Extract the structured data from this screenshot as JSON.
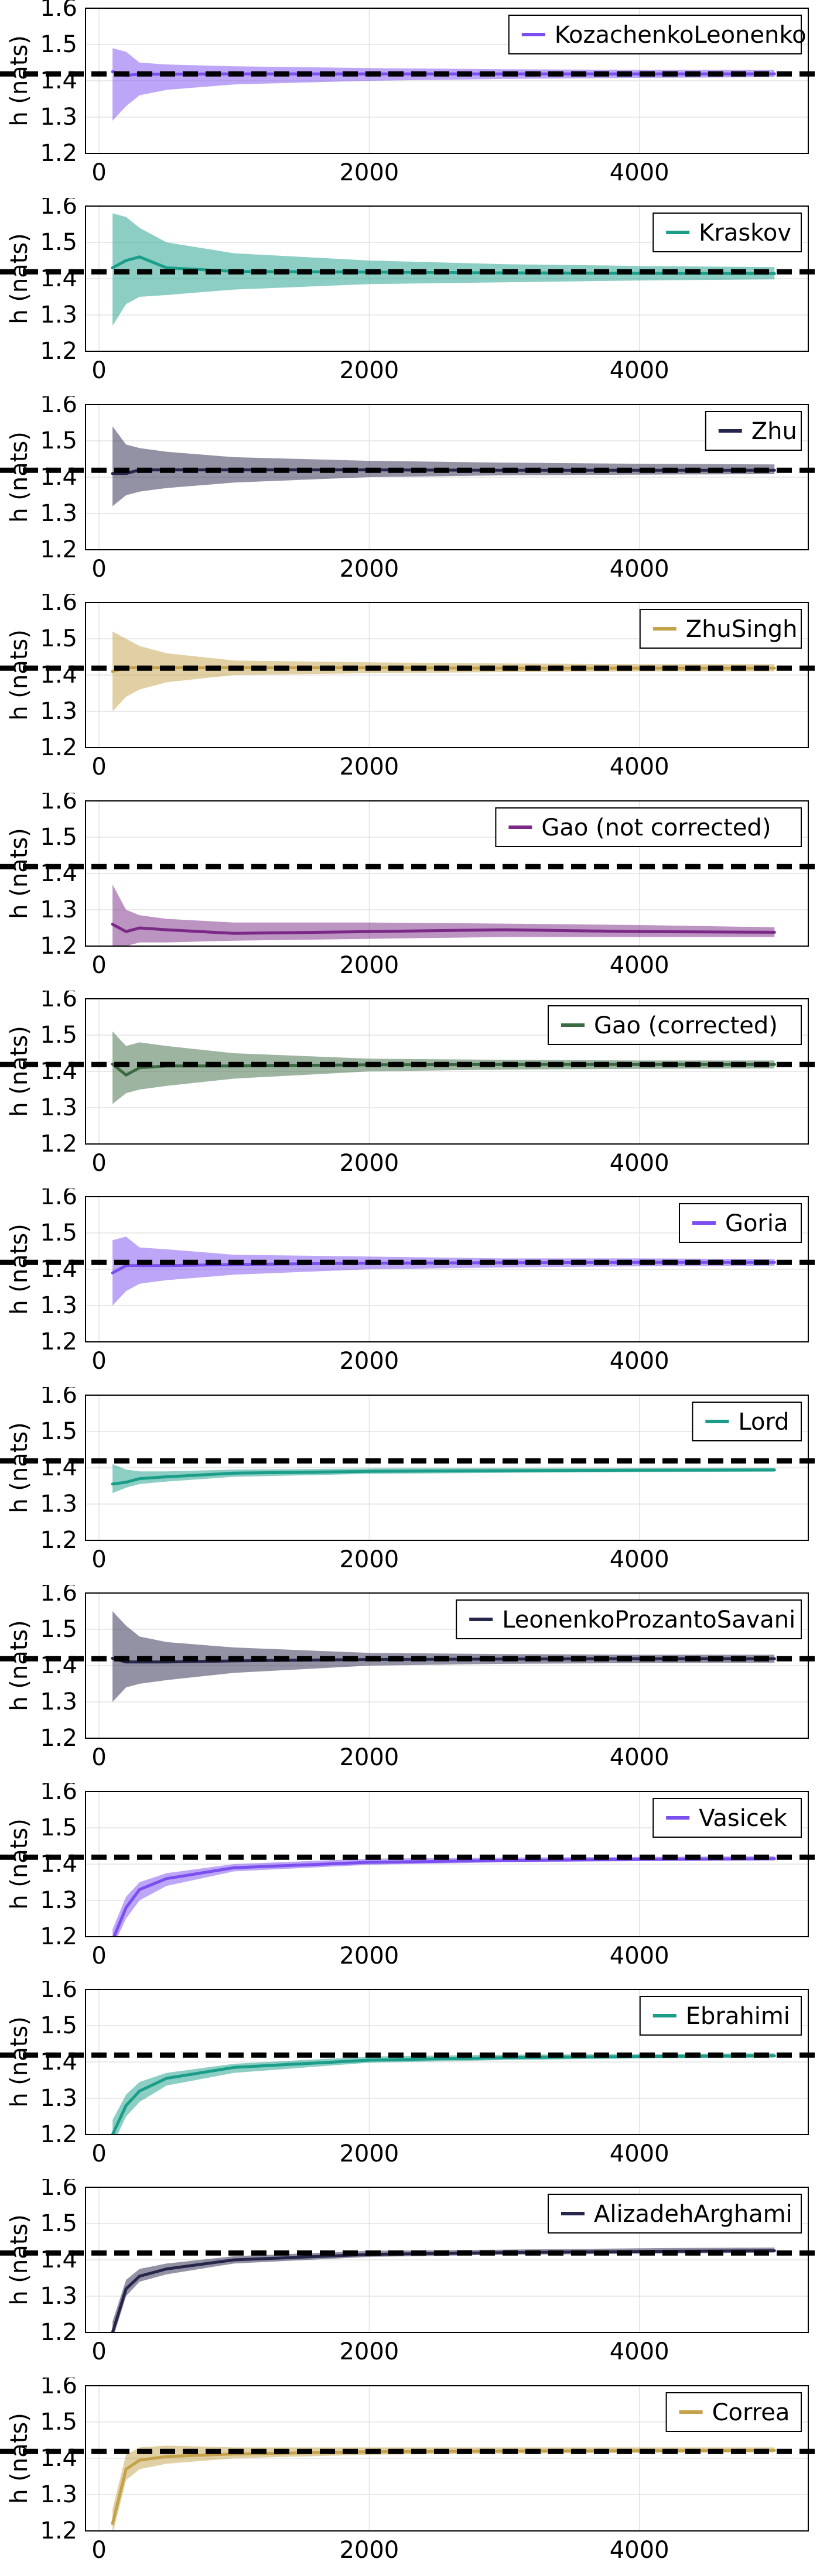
{
  "colors": {
    "purple": "#7b4ef0",
    "teal": "#1a9e8a",
    "navy": "#26254a",
    "gold": "#c4a24a",
    "magenta": "#7a2a86",
    "green": "#3a6a42",
    "reference": "#000000"
  },
  "chart_data": [
    {
      "type": "line",
      "legend_position": "top-right",
      "grid": true,
      "title": "",
      "xlabel": "",
      "ylabel": "h (nats)",
      "xlim": [
        -100,
        5250
      ],
      "ylim": [
        1.2,
        1.6
      ],
      "xticks": [
        "0",
        "2000",
        "4000"
      ],
      "yticks": [
        "1.2",
        "1.3",
        "1.4",
        "1.5",
        "1.6"
      ],
      "reference_line": 1.419,
      "series": [
        {
          "name": "KozachenkoLeonenko",
          "color": "purple",
          "x": [
            100,
            200,
            300,
            500,
            1000,
            2000,
            3000,
            4000,
            5000
          ],
          "y": [
            1.425,
            1.415,
            1.418,
            1.418,
            1.419,
            1.419,
            1.419,
            1.419,
            1.419
          ],
          "lower": [
            1.29,
            1.33,
            1.36,
            1.375,
            1.39,
            1.4,
            1.405,
            1.408,
            1.41
          ],
          "upper": [
            1.49,
            1.48,
            1.45,
            1.445,
            1.44,
            1.435,
            1.432,
            1.43,
            1.43
          ]
        }
      ]
    },
    {
      "type": "line",
      "legend_position": "top-right",
      "grid": true,
      "title": "",
      "xlabel": "",
      "ylabel": "h (nats)",
      "xlim": [
        -100,
        5250
      ],
      "ylim": [
        1.2,
        1.6
      ],
      "xticks": [
        "0",
        "2000",
        "4000"
      ],
      "yticks": [
        "1.2",
        "1.3",
        "1.4",
        "1.5",
        "1.6"
      ],
      "reference_line": 1.419,
      "series": [
        {
          "name": "Kraskov",
          "color": "teal",
          "x": [
            100,
            200,
            300,
            500,
            1000,
            2000,
            3000,
            4000,
            5000
          ],
          "y": [
            1.43,
            1.45,
            1.46,
            1.43,
            1.42,
            1.418,
            1.416,
            1.415,
            1.414
          ],
          "lower": [
            1.27,
            1.33,
            1.35,
            1.355,
            1.37,
            1.385,
            1.39,
            1.395,
            1.398
          ],
          "upper": [
            1.58,
            1.57,
            1.54,
            1.5,
            1.47,
            1.45,
            1.44,
            1.435,
            1.432
          ]
        }
      ]
    },
    {
      "type": "line",
      "legend_position": "top-right",
      "grid": true,
      "title": "",
      "xlabel": "",
      "ylabel": "h (nats)",
      "xlim": [
        -100,
        5250
      ],
      "ylim": [
        1.2,
        1.6
      ],
      "xticks": [
        "0",
        "2000",
        "4000"
      ],
      "yticks": [
        "1.2",
        "1.3",
        "1.4",
        "1.5",
        "1.6"
      ],
      "reference_line": 1.419,
      "series": [
        {
          "name": "Zhu",
          "color": "navy",
          "x": [
            100,
            200,
            300,
            500,
            1000,
            2000,
            3000,
            4000,
            5000
          ],
          "y": [
            1.41,
            1.41,
            1.42,
            1.42,
            1.42,
            1.42,
            1.419,
            1.419,
            1.419
          ],
          "lower": [
            1.32,
            1.35,
            1.36,
            1.37,
            1.385,
            1.4,
            1.405,
            1.407,
            1.408
          ],
          "upper": [
            1.54,
            1.49,
            1.48,
            1.47,
            1.455,
            1.445,
            1.44,
            1.437,
            1.435
          ]
        }
      ]
    },
    {
      "type": "line",
      "legend_position": "top-right",
      "grid": true,
      "title": "",
      "xlabel": "",
      "ylabel": "h (nats)",
      "xlim": [
        -100,
        5250
      ],
      "ylim": [
        1.2,
        1.6
      ],
      "xticks": [
        "0",
        "2000",
        "4000"
      ],
      "yticks": [
        "1.2",
        "1.3",
        "1.4",
        "1.5",
        "1.6"
      ],
      "reference_line": 1.419,
      "series": [
        {
          "name": "ZhuSingh",
          "color": "gold",
          "x": [
            100,
            200,
            300,
            500,
            1000,
            2000,
            3000,
            4000,
            5000
          ],
          "y": [
            1.41,
            1.42,
            1.42,
            1.42,
            1.42,
            1.42,
            1.419,
            1.419,
            1.419
          ],
          "lower": [
            1.3,
            1.34,
            1.36,
            1.38,
            1.4,
            1.405,
            1.408,
            1.41,
            1.41
          ],
          "upper": [
            1.52,
            1.5,
            1.48,
            1.46,
            1.44,
            1.435,
            1.432,
            1.43,
            1.43
          ]
        }
      ]
    },
    {
      "type": "line",
      "legend_position": "top-right",
      "grid": true,
      "title": "",
      "xlabel": "",
      "ylabel": "h (nats)",
      "xlim": [
        -100,
        5250
      ],
      "ylim": [
        1.2,
        1.6
      ],
      "xticks": [
        "0",
        "2000",
        "4000"
      ],
      "yticks": [
        "1.2",
        "1.3",
        "1.4",
        "1.5",
        "1.6"
      ],
      "reference_line": 1.419,
      "series": [
        {
          "name": "Gao (not corrected)",
          "color": "magenta",
          "x": [
            100,
            200,
            300,
            500,
            1000,
            2000,
            3000,
            4000,
            5000
          ],
          "y": [
            1.26,
            1.24,
            1.25,
            1.245,
            1.235,
            1.24,
            1.245,
            1.24,
            1.238
          ],
          "lower": [
            1.19,
            1.2,
            1.21,
            1.21,
            1.215,
            1.22,
            1.225,
            1.225,
            1.225
          ],
          "upper": [
            1.37,
            1.3,
            1.285,
            1.275,
            1.265,
            1.265,
            1.262,
            1.258,
            1.252
          ]
        }
      ]
    },
    {
      "type": "line",
      "legend_position": "top-right",
      "grid": true,
      "title": "",
      "xlabel": "",
      "ylabel": "h (nats)",
      "xlim": [
        -100,
        5250
      ],
      "ylim": [
        1.2,
        1.6
      ],
      "xticks": [
        "0",
        "2000",
        "4000"
      ],
      "yticks": [
        "1.2",
        "1.3",
        "1.4",
        "1.5",
        "1.6"
      ],
      "reference_line": 1.419,
      "series": [
        {
          "name": "Gao (corrected)",
          "color": "green",
          "x": [
            100,
            200,
            300,
            500,
            1000,
            2000,
            3000,
            4000,
            5000
          ],
          "y": [
            1.42,
            1.39,
            1.41,
            1.415,
            1.415,
            1.418,
            1.419,
            1.419,
            1.419
          ],
          "lower": [
            1.31,
            1.34,
            1.35,
            1.36,
            1.38,
            1.4,
            1.405,
            1.407,
            1.408
          ],
          "upper": [
            1.51,
            1.47,
            1.48,
            1.47,
            1.45,
            1.435,
            1.432,
            1.43,
            1.43
          ]
        }
      ]
    },
    {
      "type": "line",
      "legend_position": "top-right",
      "grid": true,
      "title": "",
      "xlabel": "",
      "ylabel": "h (nats)",
      "xlim": [
        -100,
        5250
      ],
      "ylim": [
        1.2,
        1.6
      ],
      "xticks": [
        "0",
        "2000",
        "4000"
      ],
      "yticks": [
        "1.2",
        "1.3",
        "1.4",
        "1.5",
        "1.6"
      ],
      "reference_line": 1.419,
      "series": [
        {
          "name": "Goria",
          "color": "purple",
          "x": [
            100,
            200,
            300,
            500,
            1000,
            2000,
            3000,
            4000,
            5000
          ],
          "y": [
            1.39,
            1.41,
            1.41,
            1.41,
            1.413,
            1.417,
            1.418,
            1.419,
            1.419
          ],
          "lower": [
            1.3,
            1.34,
            1.36,
            1.37,
            1.385,
            1.4,
            1.405,
            1.408,
            1.41
          ],
          "upper": [
            1.48,
            1.49,
            1.46,
            1.455,
            1.44,
            1.435,
            1.43,
            1.43,
            1.428
          ]
        }
      ]
    },
    {
      "type": "line",
      "legend_position": "top-right",
      "grid": true,
      "title": "",
      "xlabel": "",
      "ylabel": "h (nats)",
      "xlim": [
        -100,
        5250
      ],
      "ylim": [
        1.2,
        1.6
      ],
      "xticks": [
        "0",
        "2000",
        "4000"
      ],
      "yticks": [
        "1.2",
        "1.3",
        "1.4",
        "1.5",
        "1.6"
      ],
      "reference_line": 1.419,
      "series": [
        {
          "name": "Lord",
          "color": "teal",
          "x": [
            100,
            200,
            300,
            500,
            1000,
            2000,
            3000,
            4000,
            5000
          ],
          "y": [
            1.355,
            1.36,
            1.37,
            1.375,
            1.385,
            1.39,
            1.392,
            1.393,
            1.394
          ],
          "lower": [
            1.33,
            1.345,
            1.355,
            1.362,
            1.375,
            1.383,
            1.386,
            1.388,
            1.389
          ],
          "upper": [
            1.41,
            1.395,
            1.39,
            1.39,
            1.395,
            1.398,
            1.399,
            1.399,
            1.399
          ]
        }
      ]
    },
    {
      "type": "line",
      "legend_position": "top-right",
      "grid": true,
      "title": "",
      "xlabel": "",
      "ylabel": "h (nats)",
      "xlim": [
        -100,
        5250
      ],
      "ylim": [
        1.2,
        1.6
      ],
      "xticks": [
        "0",
        "2000",
        "4000"
      ],
      "yticks": [
        "1.2",
        "1.3",
        "1.4",
        "1.5",
        "1.6"
      ],
      "reference_line": 1.419,
      "series": [
        {
          "name": "LeonenkoProzantoSavani",
          "color": "navy",
          "x": [
            100,
            200,
            300,
            500,
            1000,
            2000,
            3000,
            4000,
            5000
          ],
          "y": [
            1.42,
            1.41,
            1.41,
            1.41,
            1.413,
            1.417,
            1.418,
            1.419,
            1.419
          ],
          "lower": [
            1.3,
            1.34,
            1.35,
            1.36,
            1.38,
            1.4,
            1.405,
            1.407,
            1.408
          ],
          "upper": [
            1.55,
            1.51,
            1.48,
            1.465,
            1.45,
            1.435,
            1.432,
            1.43,
            1.43
          ]
        }
      ]
    },
    {
      "type": "line",
      "legend_position": "top-right",
      "grid": true,
      "title": "",
      "xlabel": "",
      "ylabel": "h (nats)",
      "xlim": [
        -100,
        5250
      ],
      "ylim": [
        1.2,
        1.6
      ],
      "xticks": [
        "0",
        "2000",
        "4000"
      ],
      "yticks": [
        "1.2",
        "1.3",
        "1.4",
        "1.5",
        "1.6"
      ],
      "reference_line": 1.419,
      "series": [
        {
          "name": "Vasicek",
          "color": "purple",
          "x": [
            100,
            200,
            300,
            500,
            1000,
            2000,
            3000,
            4000,
            5000
          ],
          "y": [
            1.19,
            1.28,
            1.33,
            1.36,
            1.39,
            1.405,
            1.41,
            1.413,
            1.415
          ],
          "lower": [
            1.17,
            1.25,
            1.3,
            1.34,
            1.38,
            1.398,
            1.405,
            1.408,
            1.41
          ],
          "upper": [
            1.22,
            1.31,
            1.35,
            1.375,
            1.4,
            1.415,
            1.418,
            1.42,
            1.422
          ]
        }
      ]
    },
    {
      "type": "line",
      "legend_position": "top-right",
      "grid": true,
      "title": "",
      "xlabel": "",
      "ylabel": "h (nats)",
      "xlim": [
        -100,
        5250
      ],
      "ylim": [
        1.2,
        1.6
      ],
      "xticks": [
        "0",
        "2000",
        "4000"
      ],
      "yticks": [
        "1.2",
        "1.3",
        "1.4",
        "1.5",
        "1.6"
      ],
      "reference_line": 1.419,
      "series": [
        {
          "name": "Ebrahimi",
          "color": "teal",
          "x": [
            100,
            200,
            300,
            500,
            1000,
            2000,
            3000,
            4000,
            5000
          ],
          "y": [
            1.2,
            1.28,
            1.32,
            1.355,
            1.385,
            1.405,
            1.412,
            1.415,
            1.417
          ],
          "lower": [
            1.17,
            1.25,
            1.29,
            1.335,
            1.37,
            1.398,
            1.405,
            1.41,
            1.412
          ],
          "upper": [
            1.24,
            1.31,
            1.345,
            1.37,
            1.395,
            1.415,
            1.42,
            1.422,
            1.424
          ]
        }
      ]
    },
    {
      "type": "line",
      "legend_position": "top-right",
      "grid": true,
      "title": "",
      "xlabel": "",
      "ylabel": "h (nats)",
      "xlim": [
        -100,
        5250
      ],
      "ylim": [
        1.2,
        1.6
      ],
      "xticks": [
        "0",
        "2000",
        "4000"
      ],
      "yticks": [
        "1.2",
        "1.3",
        "1.4",
        "1.5",
        "1.6"
      ],
      "reference_line": 1.419,
      "series": [
        {
          "name": "AlizadehArghami",
          "color": "navy",
          "x": [
            100,
            200,
            300,
            500,
            1000,
            2000,
            3000,
            4000,
            5000
          ],
          "y": [
            1.2,
            1.32,
            1.355,
            1.375,
            1.4,
            1.415,
            1.42,
            1.423,
            1.425
          ],
          "lower": [
            1.18,
            1.3,
            1.34,
            1.36,
            1.39,
            1.408,
            1.414,
            1.417,
            1.42
          ],
          "upper": [
            1.23,
            1.345,
            1.375,
            1.39,
            1.41,
            1.425,
            1.428,
            1.432,
            1.434
          ]
        }
      ]
    },
    {
      "type": "line",
      "legend_position": "top-right",
      "grid": true,
      "title": "",
      "xlabel": "",
      "ylabel": "h (nats)",
      "xlim": [
        -100,
        5250
      ],
      "ylim": [
        1.2,
        1.6
      ],
      "xticks": [
        "0",
        "2000",
        "4000"
      ],
      "yticks": [
        "1.2",
        "1.3",
        "1.4",
        "1.5",
        "1.6"
      ],
      "reference_line": 1.419,
      "series": [
        {
          "name": "Correa",
          "color": "gold",
          "x": [
            100,
            200,
            300,
            500,
            1000,
            2000,
            3000,
            4000,
            5000
          ],
          "y": [
            1.22,
            1.37,
            1.395,
            1.405,
            1.412,
            1.418,
            1.42,
            1.421,
            1.422
          ],
          "lower": [
            1.19,
            1.34,
            1.37,
            1.385,
            1.4,
            1.41,
            1.413,
            1.415,
            1.416
          ],
          "upper": [
            1.26,
            1.41,
            1.43,
            1.435,
            1.43,
            1.43,
            1.43,
            1.43,
            1.43
          ]
        }
      ]
    }
  ]
}
